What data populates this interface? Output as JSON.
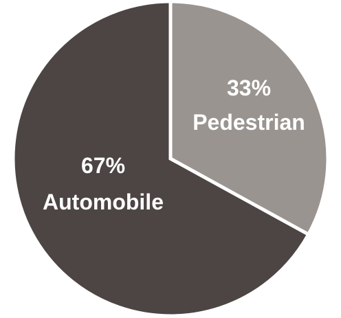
{
  "chart_data": {
    "type": "pie",
    "slices": [
      {
        "label": "Pedestrian",
        "value": 33,
        "value_label": "33%",
        "color": "#9a9490"
      },
      {
        "label": "Automobile",
        "value": 67,
        "value_label": "67%",
        "color": "#4c4543"
      }
    ],
    "start_angle_deg": 0,
    "direction": "clockwise",
    "separator_color": "#ffffff"
  }
}
